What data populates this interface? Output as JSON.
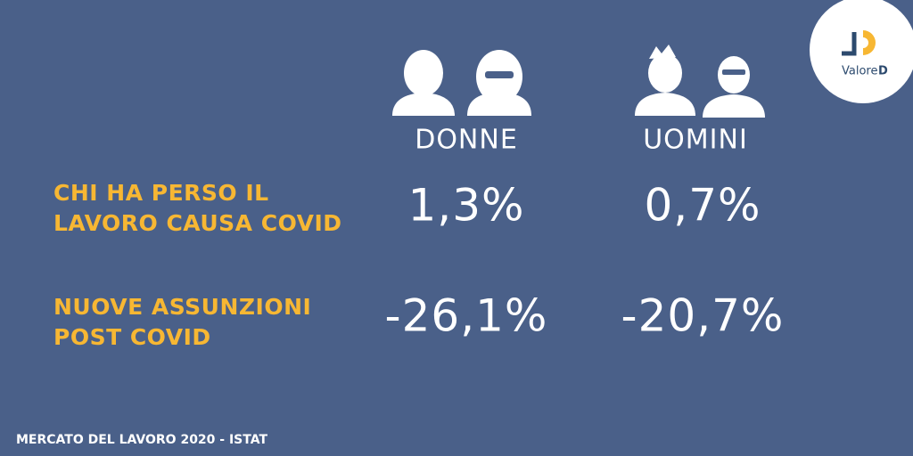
{
  "logo": {
    "text": "Valore",
    "mark": "D"
  },
  "table": {
    "columns": [
      "DONNE",
      "UOMINI"
    ],
    "rows": [
      {
        "label": [
          "CHI HA PERSO IL",
          "LAVORO CAUSA COVID"
        ],
        "values": [
          "1,3%",
          "0,7%"
        ]
      },
      {
        "label": [
          "NUOVE ASSUNZIONI",
          "POST COVID"
        ],
        "values": [
          "-26,1%",
          "-20,7%"
        ]
      }
    ]
  },
  "footer": {
    "source": "MERCATO DEL LAVORO 2020 - ISTAT"
  }
}
